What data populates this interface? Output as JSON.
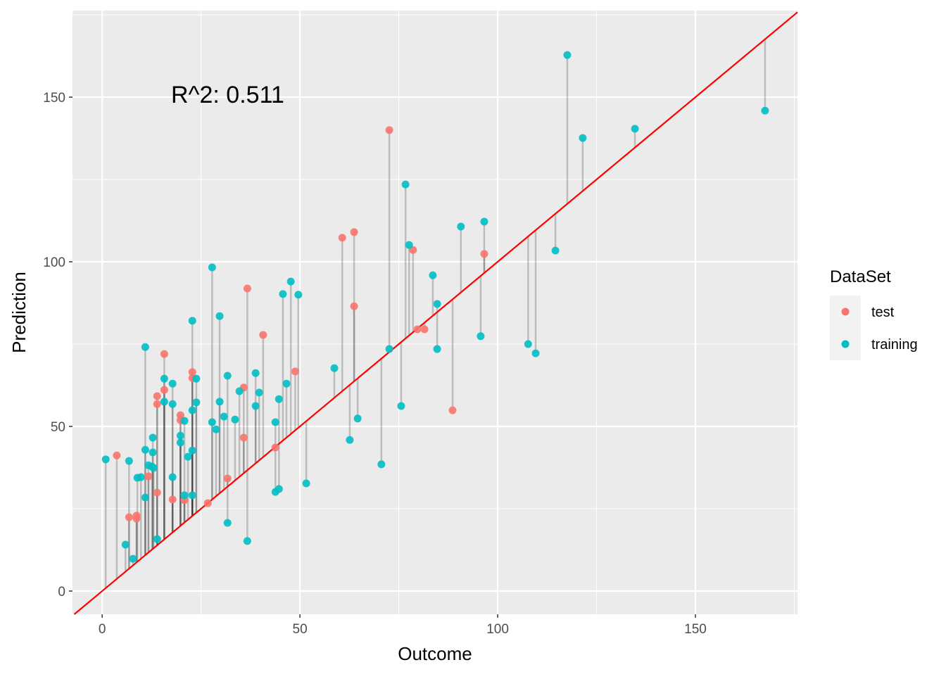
{
  "chart_data": {
    "type": "scatter",
    "title": "",
    "annotation": "R^2: 0.511",
    "xlabel": "Outcome",
    "ylabel": "Prediction",
    "xlim": [
      -7.5,
      175.8
    ],
    "ylim": [
      -7.05,
      176.3
    ],
    "xticks": [
      0,
      50,
      100,
      150
    ],
    "yticks": [
      0,
      50,
      100,
      150
    ],
    "grid": true,
    "reference_line": {
      "slope": 1,
      "intercept": 0,
      "color": "#FF0000"
    },
    "legend": {
      "title": "DataSet",
      "position": "right",
      "entries": [
        {
          "label": "test",
          "color": "#F8766D"
        },
        {
          "label": "training",
          "color": "#00BFC4"
        }
      ]
    },
    "series": [
      {
        "name": "test",
        "color": "#F8766D",
        "points": [
          [
            3.7,
            41.2
          ],
          [
            6.8,
            22.4
          ],
          [
            8.7,
            22.9
          ],
          [
            8.7,
            22.0
          ],
          [
            11.7,
            34.8
          ],
          [
            13.9,
            59.2
          ],
          [
            13.9,
            56.8
          ],
          [
            13.9,
            29.9
          ],
          [
            15.7,
            72.0
          ],
          [
            15.7,
            61.1
          ],
          [
            17.8,
            27.8
          ],
          [
            19.8,
            53.4
          ],
          [
            19.8,
            51.9
          ],
          [
            20.8,
            27.6
          ],
          [
            22.8,
            66.5
          ],
          [
            22.8,
            64.7
          ],
          [
            26.7,
            26.7
          ],
          [
            31.7,
            34.2
          ],
          [
            35.8,
            46.6
          ],
          [
            35.8,
            61.8
          ],
          [
            36.7,
            91.9
          ],
          [
            40.7,
            77.8
          ],
          [
            43.8,
            43.6
          ],
          [
            48.8,
            66.7
          ],
          [
            60.7,
            107.3
          ],
          [
            63.7,
            109.0
          ],
          [
            63.7,
            86.5
          ],
          [
            72.6,
            140.0
          ],
          [
            78.6,
            103.6
          ],
          [
            79.7,
            79.5
          ],
          [
            81.5,
            79.5
          ],
          [
            88.6,
            54.9
          ],
          [
            96.6,
            102.4
          ]
        ]
      },
      {
        "name": "training",
        "color": "#00BFC4",
        "points": [
          [
            0.9,
            40.0
          ],
          [
            5.9,
            14.1
          ],
          [
            6.8,
            39.5
          ],
          [
            7.8,
            9.8
          ],
          [
            8.9,
            34.4
          ],
          [
            9.8,
            34.6
          ],
          [
            10.9,
            74.1
          ],
          [
            10.9,
            42.9
          ],
          [
            10.9,
            28.4
          ],
          [
            11.7,
            38.2
          ],
          [
            12.6,
            37.8
          ],
          [
            12.8,
            46.6
          ],
          [
            12.8,
            42.1
          ],
          [
            13.0,
            37.4
          ],
          [
            13.9,
            15.8
          ],
          [
            15.7,
            64.5
          ],
          [
            15.7,
            57.5
          ],
          [
            17.8,
            63.0
          ],
          [
            17.8,
            56.8
          ],
          [
            17.8,
            34.6
          ],
          [
            19.8,
            47.2
          ],
          [
            19.8,
            45.1
          ],
          [
            20.8,
            51.7
          ],
          [
            20.8,
            29.1
          ],
          [
            21.7,
            40.8
          ],
          [
            22.8,
            82.1
          ],
          [
            22.8,
            54.9
          ],
          [
            22.8,
            42.7
          ],
          [
            22.8,
            29.1
          ],
          [
            23.8,
            64.5
          ],
          [
            23.8,
            57.3
          ],
          [
            27.8,
            98.3
          ],
          [
            27.8,
            51.3
          ],
          [
            28.8,
            49.1
          ],
          [
            29.7,
            83.5
          ],
          [
            29.7,
            57.5
          ],
          [
            30.8,
            53.0
          ],
          [
            31.7,
            65.4
          ],
          [
            31.7,
            20.7
          ],
          [
            33.6,
            52.1
          ],
          [
            34.7,
            60.7
          ],
          [
            36.7,
            15.2
          ],
          [
            38.8,
            66.2
          ],
          [
            38.8,
            56.2
          ],
          [
            39.7,
            60.3
          ],
          [
            43.8,
            51.3
          ],
          [
            43.8,
            30.1
          ],
          [
            44.7,
            31.0
          ],
          [
            44.7,
            58.3
          ],
          [
            45.7,
            90.2
          ],
          [
            46.6,
            63.0
          ],
          [
            47.7,
            94.0
          ],
          [
            49.6,
            90.0
          ],
          [
            51.6,
            32.7
          ],
          [
            58.7,
            67.7
          ],
          [
            62.6,
            45.9
          ],
          [
            64.6,
            52.4
          ],
          [
            70.6,
            38.5
          ],
          [
            72.6,
            73.5
          ],
          [
            75.6,
            56.2
          ],
          [
            76.7,
            123.5
          ],
          [
            77.6,
            105.1
          ],
          [
            83.6,
            95.9
          ],
          [
            84.7,
            87.2
          ],
          [
            84.7,
            73.5
          ],
          [
            90.7,
            110.7
          ],
          [
            95.7,
            77.4
          ],
          [
            96.6,
            112.2
          ],
          [
            107.7,
            75.0
          ],
          [
            109.6,
            72.2
          ],
          [
            114.6,
            103.4
          ],
          [
            117.6,
            162.8
          ],
          [
            121.5,
            137.6
          ],
          [
            134.7,
            140.4
          ],
          [
            167.6,
            145.9
          ]
        ]
      }
    ]
  }
}
